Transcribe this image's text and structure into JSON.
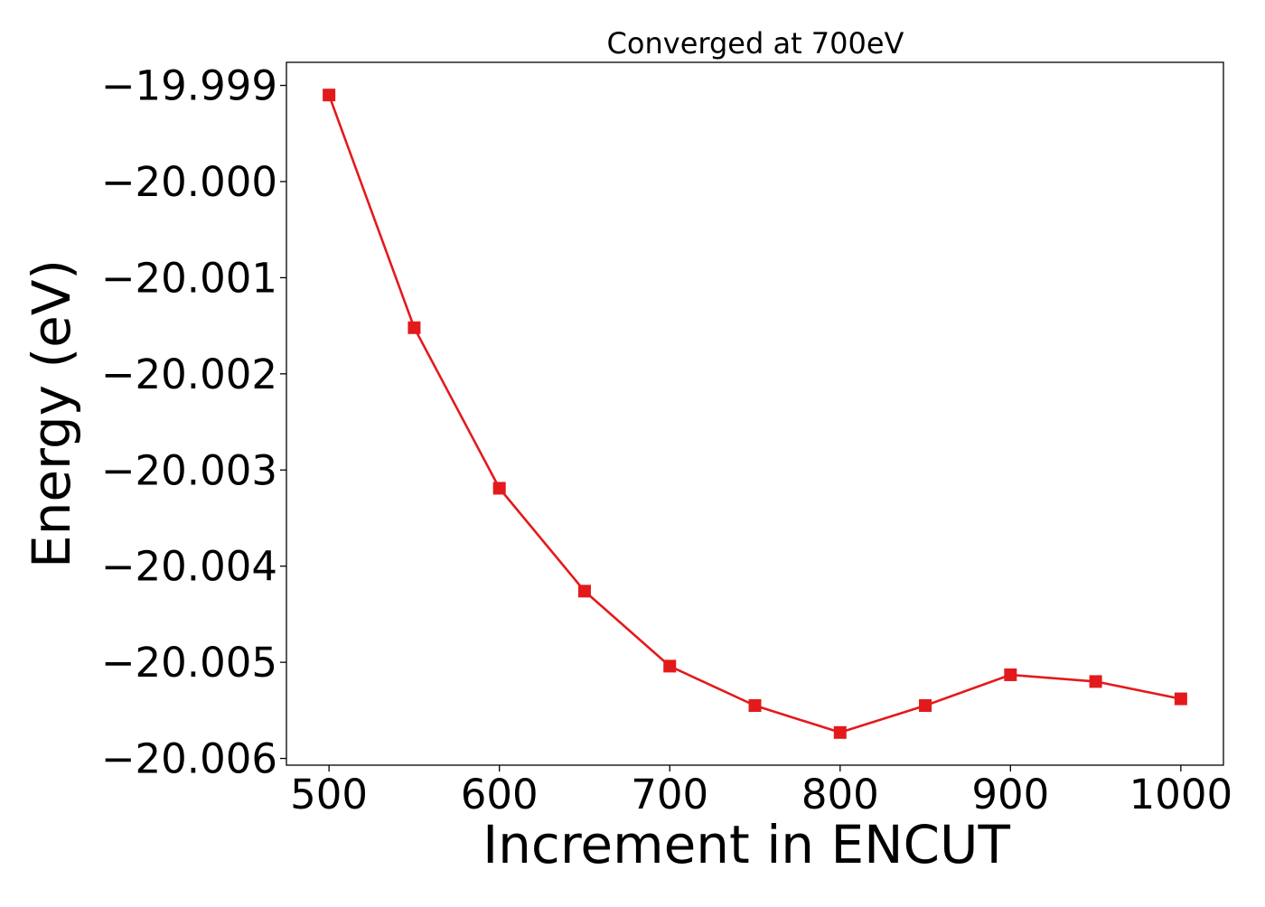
{
  "chart_data": {
    "type": "line",
    "title": "Converged at 700eV",
    "xlabel": "Increment in ENCUT",
    "ylabel": "Energy (eV)",
    "xlim": [
      475,
      1025
    ],
    "ylim": [
      -20.00607,
      -19.99876
    ],
    "x_ticks": [
      500,
      600,
      700,
      800,
      900,
      1000
    ],
    "x_tick_labels": [
      "500",
      "600",
      "700",
      "800",
      "900",
      "1000"
    ],
    "y_ticks": [
      -19.999,
      -20.0,
      -20.001,
      -20.002,
      -20.003,
      -20.004,
      -20.005,
      -20.006
    ],
    "y_tick_labels": [
      "−19.999",
      "−20.000",
      "−20.001",
      "−20.002",
      "−20.003",
      "−20.004",
      "−20.005",
      "−20.006"
    ],
    "grid": false,
    "series": [
      {
        "color": "#e31a1c",
        "marker": "square",
        "x": [
          500,
          550,
          600,
          650,
          700,
          750,
          800,
          850,
          900,
          950,
          1000
        ],
        "y": [
          -19.9991,
          -20.00152,
          -20.00319,
          -20.00426,
          -20.00504,
          -20.00545,
          -20.00573,
          -20.00545,
          -20.00513,
          -20.0052,
          -20.00538
        ]
      }
    ]
  }
}
